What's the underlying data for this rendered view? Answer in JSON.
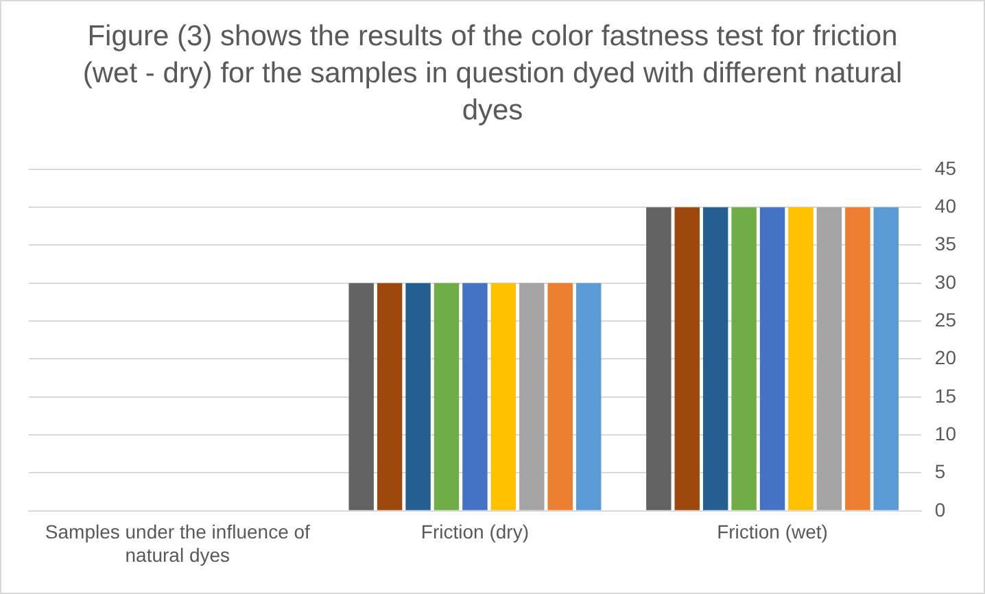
{
  "chart_data": {
    "type": "bar",
    "title": "Figure (3) shows the results of the color fastness test for friction (wet - dry) for the samples in question dyed with different natural dyes",
    "categories": [
      "Samples under the influence of natural dyes",
      "Friction (dry)",
      "Friction (wet)"
    ],
    "series": [
      {
        "color": "#636363",
        "values": [
          null,
          30,
          40
        ]
      },
      {
        "color": "#9e480e",
        "values": [
          null,
          30,
          40
        ]
      },
      {
        "color": "#255e91",
        "values": [
          null,
          30,
          40
        ]
      },
      {
        "color": "#70ad47",
        "values": [
          null,
          30,
          40
        ]
      },
      {
        "color": "#4472c4",
        "values": [
          null,
          30,
          40
        ]
      },
      {
        "color": "#ffc000",
        "values": [
          null,
          30,
          40
        ]
      },
      {
        "color": "#a5a5a5",
        "values": [
          null,
          30,
          40
        ]
      },
      {
        "color": "#ed7d31",
        "values": [
          null,
          30,
          40
        ]
      },
      {
        "color": "#5b9bd5",
        "values": [
          null,
          30,
          40
        ]
      }
    ],
    "ylim": [
      0,
      45
    ],
    "yticks": [
      0,
      5,
      10,
      15,
      20,
      25,
      30,
      35,
      40,
      45
    ],
    "grid": "y",
    "legend": false
  }
}
